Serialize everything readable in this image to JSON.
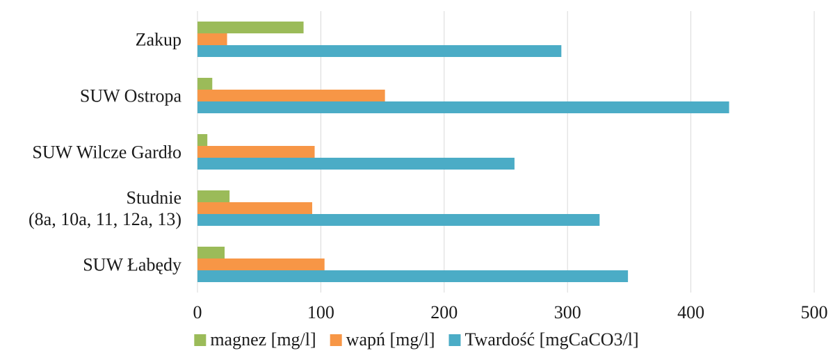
{
  "chart_data": {
    "type": "bar",
    "orientation": "horizontal",
    "title": "",
    "xlabel": "",
    "ylabel": "",
    "categories": [
      [
        "Zakup"
      ],
      [
        "SUW Ostropa"
      ],
      [
        "SUW Wilcze Gardło"
      ],
      [
        "Studnie",
        "(8a, 10a, 11, 12a, 13)"
      ],
      [
        "SUW Łabędy"
      ]
    ],
    "series": [
      {
        "name": "magnez [mg/l]",
        "color": "#9bbb59",
        "values": [
          86,
          12,
          8,
          26,
          22
        ]
      },
      {
        "name": "wapń [mg/l]",
        "color": "#f79646",
        "values": [
          24,
          152,
          95,
          93,
          103
        ]
      },
      {
        "name": "Twardość [mgCaCO3/l]",
        "color": "#4bacc6",
        "values": [
          295,
          431,
          257,
          326,
          349
        ]
      }
    ],
    "xlim": [
      0,
      500
    ],
    "xticks": [
      0,
      100,
      200,
      300,
      400,
      500
    ],
    "grid": "vertical",
    "legend": "bottom"
  }
}
